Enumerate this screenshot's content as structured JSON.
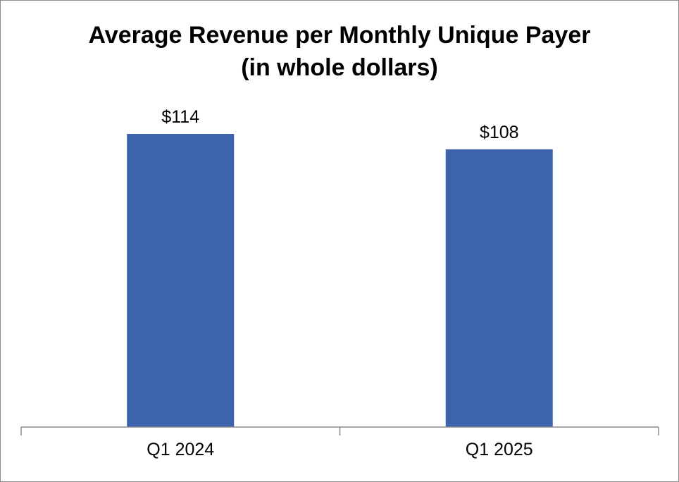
{
  "chart_data": {
    "type": "bar",
    "title_line1": "Average Revenue per Monthly Unique Payer",
    "title_line2": "(in whole dollars)",
    "categories": [
      "Q1 2024",
      "Q1 2025"
    ],
    "values": [
      114,
      108
    ],
    "value_labels": [
      "$114",
      "$108"
    ],
    "ylim": [
      0,
      114
    ],
    "grid": false,
    "legend": "none",
    "bar_color": "#3d64ab",
    "axis_color": "#8c8c8c"
  }
}
